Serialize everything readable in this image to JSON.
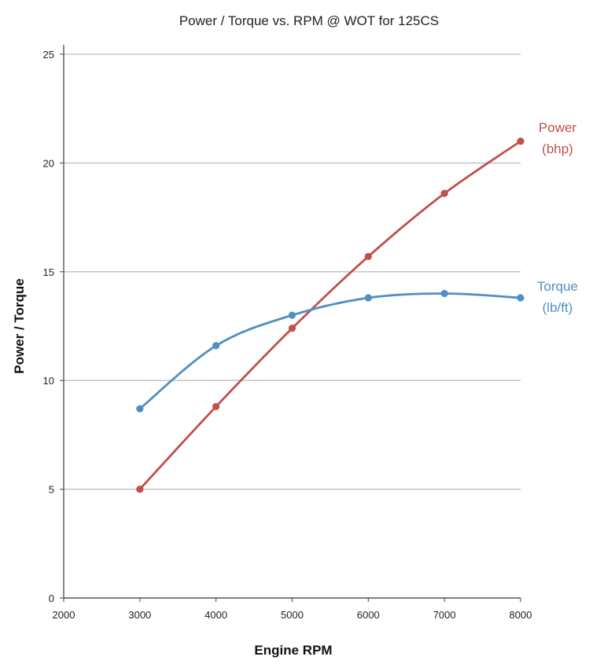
{
  "chart_data": {
    "type": "line",
    "title": "Power / Torque vs. RPM @ WOT for 125CS",
    "xlabel": "Engine RPM",
    "ylabel": "Power / Torque",
    "xlim": [
      2000,
      8000
    ],
    "ylim": [
      0,
      25
    ],
    "x_ticks": [
      2000,
      3000,
      4000,
      5000,
      6000,
      7000,
      8000
    ],
    "y_ticks": [
      0,
      5,
      10,
      15,
      20,
      25
    ],
    "grid": "horizontal",
    "x": [
      3000,
      4000,
      5000,
      6000,
      7000,
      8000
    ],
    "series": [
      {
        "name": "Power",
        "unit": "(bhp)",
        "color": "#c0504d",
        "values": [
          5.0,
          8.8,
          12.4,
          15.7,
          18.6,
          21.0
        ]
      },
      {
        "name": "Torque",
        "unit": "(lb/ft)",
        "color": "#4f8fc6",
        "values": [
          8.7,
          11.6,
          13.0,
          13.8,
          14.0,
          13.8
        ]
      }
    ]
  }
}
